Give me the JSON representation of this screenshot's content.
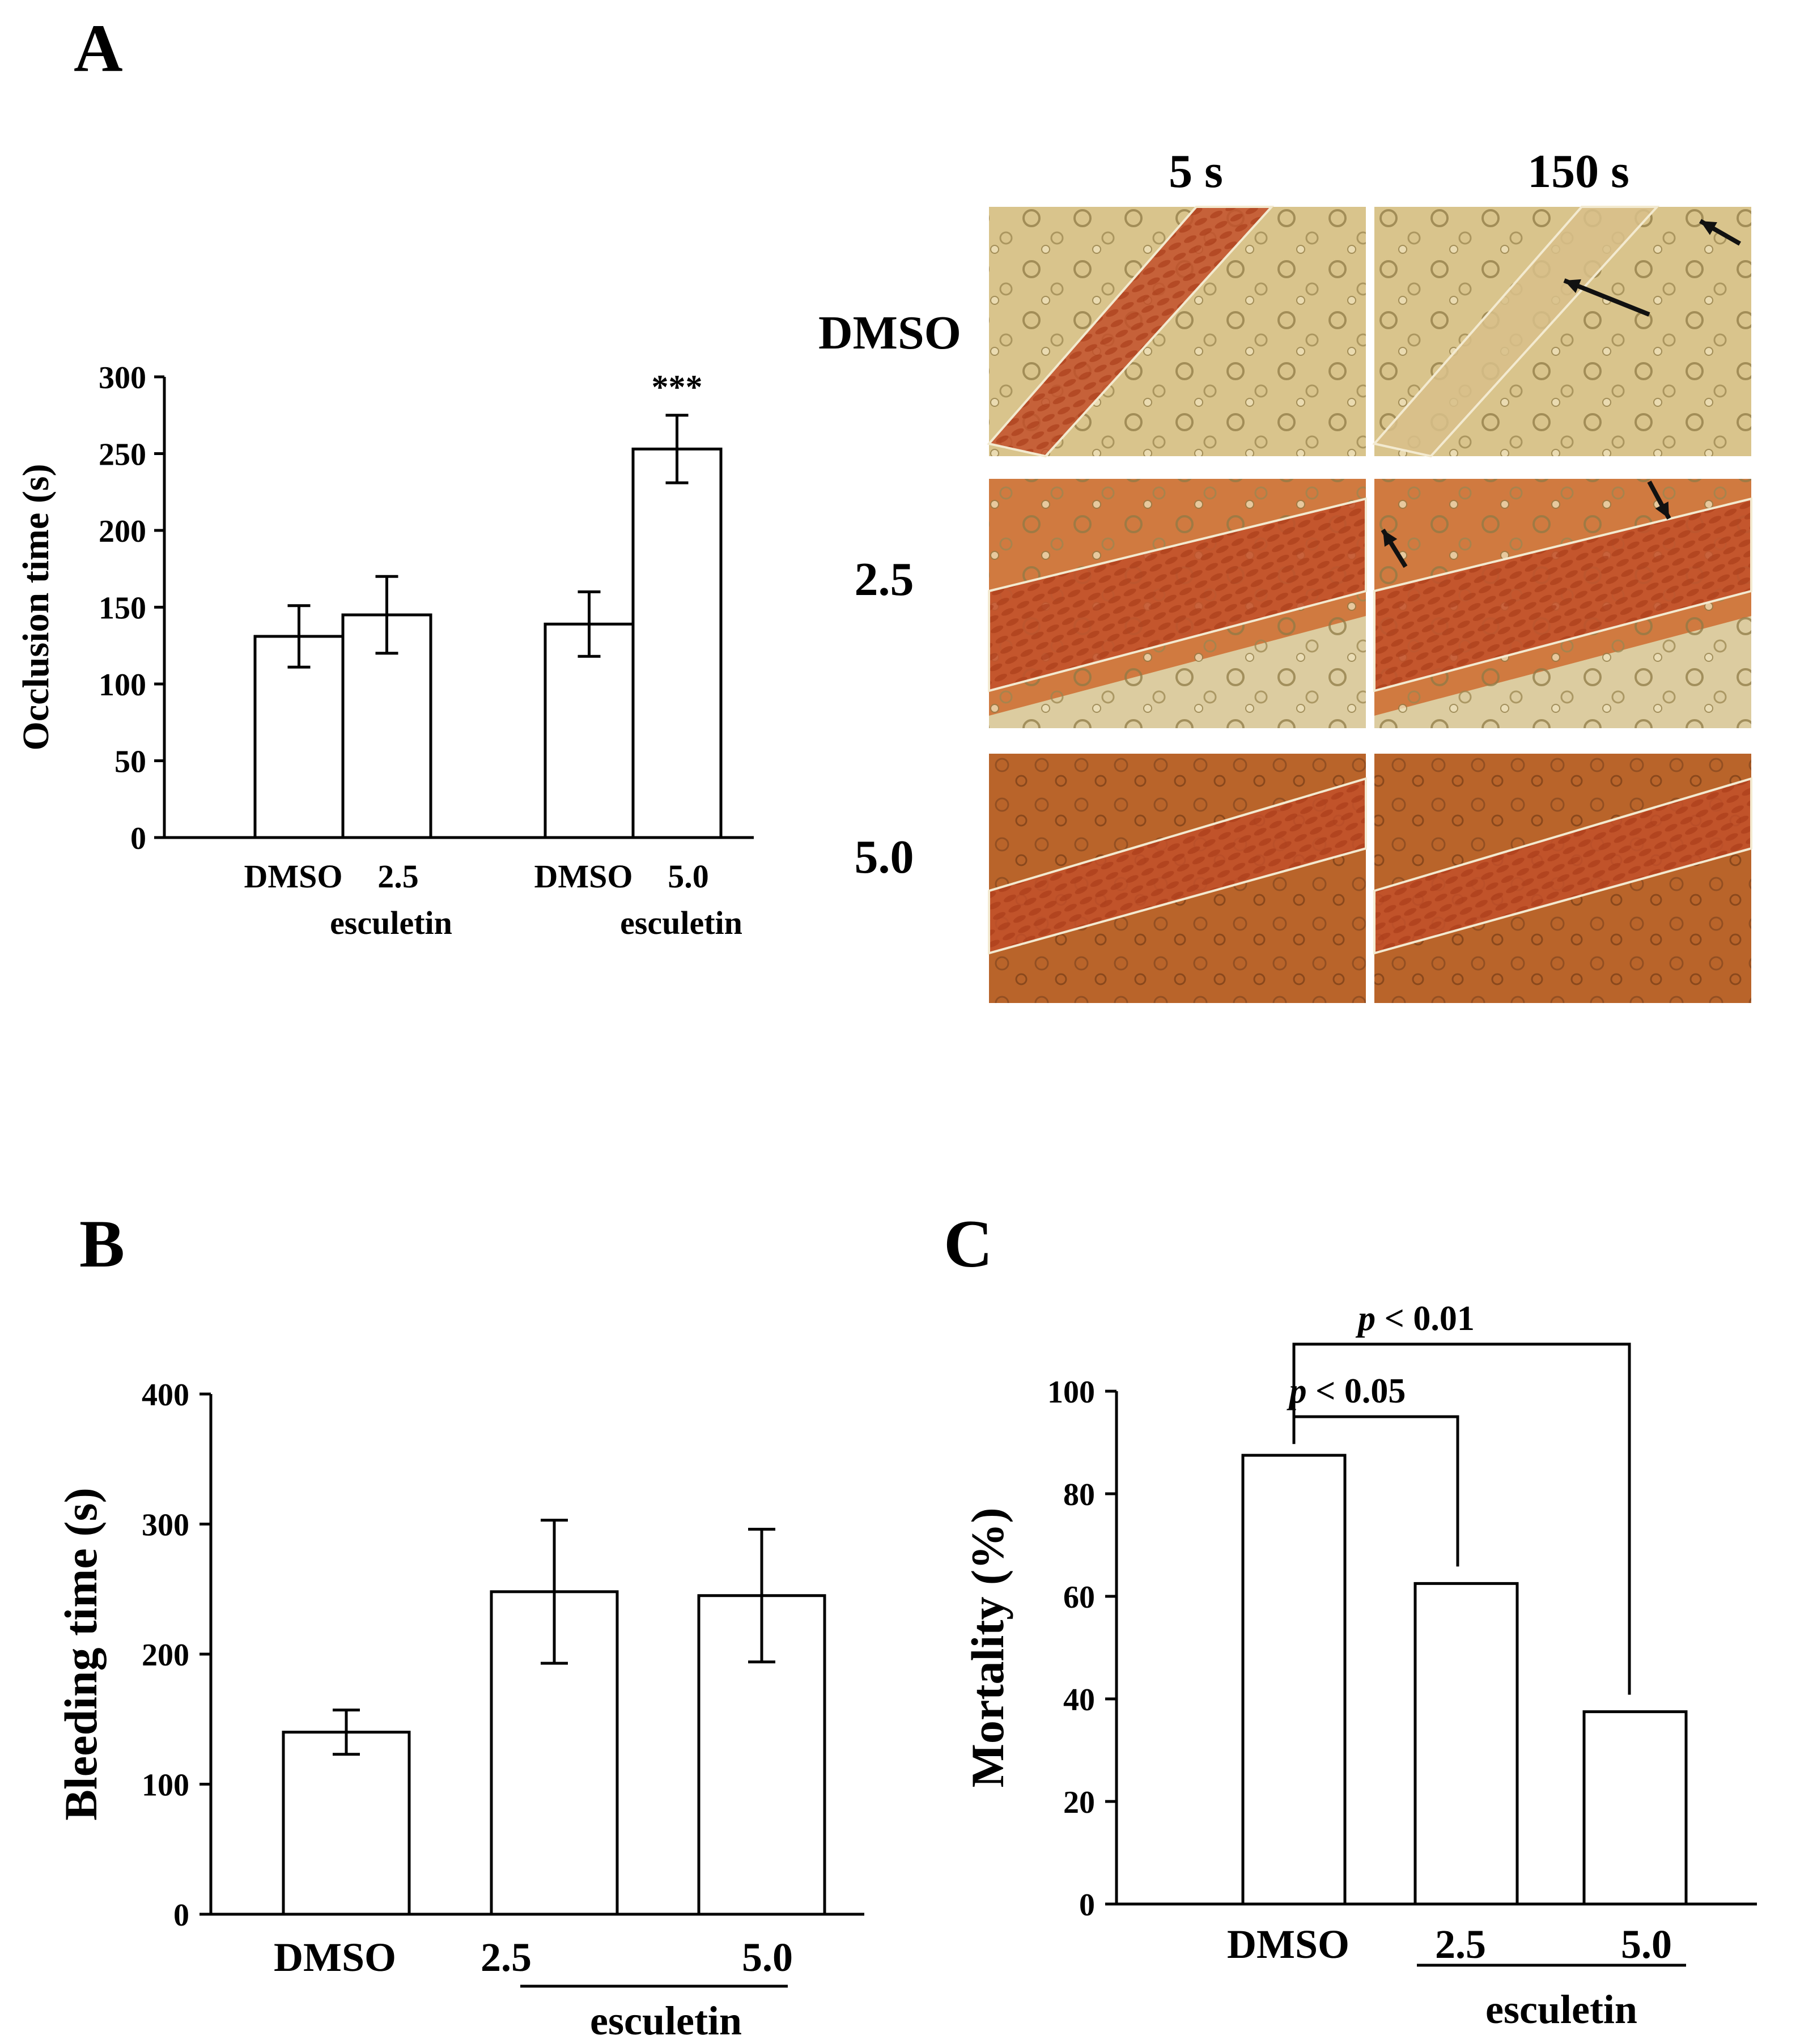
{
  "panels": {
    "A": {
      "letter": "A"
    },
    "B": {
      "letter": "B"
    },
    "C": {
      "letter": "C"
    }
  },
  "micrographs": {
    "columns": [
      "5 s",
      "150 s"
    ],
    "rows": [
      "DMSO",
      "2.5",
      "5.0"
    ],
    "colors": {
      "dmso": "#d9c48c",
      "esc25": "#d07a40",
      "esc50": "#b9642a",
      "vessel": "#c2502a",
      "arrow": "#111111"
    }
  },
  "chart_data": [
    {
      "id": "A",
      "type": "bar",
      "title": "",
      "ylabel": "Occlusion time (s)",
      "ylim": [
        0,
        300
      ],
      "yticks": [
        "0",
        "50",
        "100",
        "150",
        "200",
        "250",
        "300"
      ],
      "groups": [
        {
          "labels": [
            "DMSO",
            "2.5"
          ],
          "sublabel": "esculetin",
          "values": [
            131,
            145
          ],
          "errors": [
            20,
            25
          ]
        },
        {
          "labels": [
            "DMSO",
            "5.0"
          ],
          "sublabel": "esculetin",
          "values": [
            139,
            253
          ],
          "errors": [
            21,
            22
          ]
        }
      ],
      "annotations": [
        {
          "text": "***",
          "bar": "5.0"
        }
      ]
    },
    {
      "id": "B",
      "type": "bar",
      "title": "",
      "ylabel": "Bleeding time (s)",
      "ylim": [
        0,
        400
      ],
      "yticks": [
        "0",
        "100",
        "200",
        "300",
        "400"
      ],
      "categories": [
        "DMSO",
        "2.5",
        "5.0"
      ],
      "group_label": "esculetin",
      "values": [
        140,
        248,
        245
      ],
      "errors": [
        17,
        55,
        51
      ]
    },
    {
      "id": "C",
      "type": "bar",
      "title": "",
      "ylabel": "Mortality  (%)",
      "ylim": [
        0,
        100
      ],
      "yticks": [
        "0",
        "20",
        "40",
        "60",
        "80",
        "100"
      ],
      "categories": [
        "DMSO",
        "2.5",
        "5.0"
      ],
      "group_label": "esculetin",
      "values": [
        87.5,
        62.5,
        37.5
      ],
      "comparisons": [
        {
          "from": "DMSO",
          "to": "2.5",
          "p_prefix": "p",
          "p_rest": " < 0.05"
        },
        {
          "from": "DMSO",
          "to": "5.0",
          "p_prefix": "p",
          "p_rest": " < 0.01"
        }
      ]
    }
  ]
}
